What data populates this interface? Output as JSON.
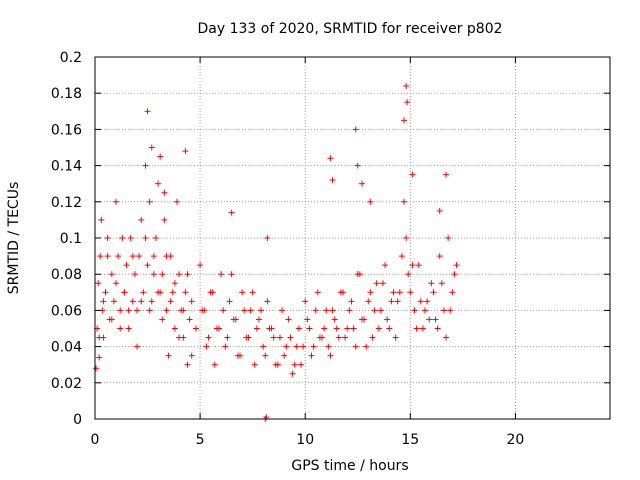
{
  "chart_data": {
    "type": "scatter",
    "title": "Day 133 of 2020, SRMTID for receiver p802",
    "xlabel": "GPS time / hours",
    "ylabel": "SRMTID / TECUs",
    "xlim": [
      0,
      24.5
    ],
    "ylim": [
      0,
      0.2
    ],
    "x_ticks": [
      0,
      5,
      10,
      15,
      20
    ],
    "x_tick_labels": [
      "0",
      "5",
      "10",
      "15",
      "20"
    ],
    "y_ticks": [
      0,
      0.02,
      0.04,
      0.06,
      0.08,
      0.1,
      0.12,
      0.14,
      0.16,
      0.18,
      0.2
    ],
    "y_tick_labels": [
      "0",
      "0.02",
      "0.04",
      "0.06",
      "0.08",
      "0.1",
      "0.12",
      "0.14",
      "0.16",
      "0.18",
      "0.2"
    ],
    "grid": true,
    "marker": "+",
    "color": "#ff0000",
    "series": [
      {
        "name": "SRMTID",
        "x": [
          0.05,
          0.1,
          0.15,
          0.2,
          0.25,
          0.3,
          0.35,
          0.4,
          0.5,
          0.6,
          0.7,
          0.8,
          0.9,
          1.0,
          1.1,
          1.2,
          1.3,
          1.4,
          1.5,
          1.6,
          1.7,
          1.8,
          1.9,
          2.0,
          2.1,
          2.2,
          2.3,
          2.4,
          2.5,
          2.6,
          2.7,
          2.8,
          2.9,
          3.0,
          3.1,
          3.2,
          3.3,
          3.4,
          3.5,
          3.6,
          3.7,
          3.8,
          3.9,
          4.0,
          4.1,
          4.2,
          4.3,
          4.4,
          4.5,
          4.6,
          4.8,
          5.0,
          5.2,
          5.4,
          5.6,
          5.8,
          6.0,
          6.2,
          6.4,
          6.6,
          6.8,
          7.0,
          7.2,
          7.4,
          7.6,
          7.8,
          8.0,
          8.2,
          8.4,
          8.6,
          8.8,
          9.0,
          9.2,
          9.4,
          9.6,
          9.8,
          10.0,
          10.2,
          10.4,
          10.6,
          10.8,
          11.0,
          11.2,
          11.4,
          11.6,
          11.8,
          12.0,
          12.2,
          12.4,
          12.6,
          12.8,
          13.0,
          13.2,
          13.4,
          13.6,
          13.8,
          14.0,
          14.2,
          14.4,
          14.6,
          14.7,
          14.8,
          14.9,
          15.0,
          15.2,
          15.4,
          15.6,
          15.8,
          16.0,
          16.2,
          16.4,
          16.6,
          16.8,
          17.0,
          17.2,
          0.2,
          0.4,
          0.6,
          0.8,
          1.0,
          1.2,
          1.4,
          1.6,
          1.8,
          2.0,
          2.2,
          2.4,
          2.6,
          2.8,
          3.0,
          3.2,
          3.4,
          3.6,
          3.8,
          4.0,
          4.2,
          4.4,
          4.6,
          5.1,
          5.3,
          5.5,
          5.7,
          5.9,
          6.1,
          6.3,
          6.5,
          6.7,
          6.9,
          7.1,
          7.3,
          7.5,
          7.7,
          7.9,
          8.1,
          8.3,
          8.5,
          8.7,
          8.9,
          9.1,
          9.3,
          9.5,
          9.7,
          9.9,
          10.1,
          10.3,
          10.5,
          10.7,
          10.9,
          11.1,
          11.3,
          11.5,
          11.7,
          11.9,
          12.1,
          12.3,
          12.5,
          12.7,
          12.9,
          13.1,
          13.3,
          13.5,
          13.7,
          13.9,
          14.1,
          14.3,
          14.5,
          15.1,
          15.3,
          15.5,
          15.7,
          15.9,
          16.1,
          16.3,
          16.5,
          16.7,
          16.9,
          17.1,
          2.5,
          2.7,
          3.1,
          3.3,
          4.3,
          6.5,
          8.2,
          11.2,
          11.3,
          12.4,
          12.5,
          12.7,
          13.1,
          14.7,
          14.8,
          14.85,
          15.1,
          16.4,
          16.7,
          8.1,
          8.15
        ],
        "y": [
          0.028,
          0.05,
          0.075,
          0.034,
          0.09,
          0.11,
          0.06,
          0.045,
          0.07,
          0.1,
          0.055,
          0.08,
          0.065,
          0.12,
          0.09,
          0.06,
          0.1,
          0.07,
          0.085,
          0.05,
          0.1,
          0.065,
          0.08,
          0.06,
          0.09,
          0.11,
          0.07,
          0.14,
          0.085,
          0.12,
          0.065,
          0.09,
          0.1,
          0.13,
          0.07,
          0.08,
          0.11,
          0.06,
          0.035,
          0.09,
          0.07,
          0.05,
          0.12,
          0.08,
          0.06,
          0.045,
          0.07,
          0.03,
          0.055,
          0.065,
          0.05,
          0.085,
          0.06,
          0.045,
          0.07,
          0.05,
          0.08,
          0.04,
          0.065,
          0.055,
          0.035,
          0.07,
          0.045,
          0.06,
          0.03,
          0.055,
          0.04,
          0.065,
          0.05,
          0.03,
          0.045,
          0.035,
          0.055,
          0.025,
          0.04,
          0.03,
          0.065,
          0.05,
          0.04,
          0.07,
          0.045,
          0.06,
          0.035,
          0.055,
          0.045,
          0.07,
          0.05,
          0.065,
          0.04,
          0.08,
          0.055,
          0.065,
          0.045,
          0.075,
          0.06,
          0.085,
          0.05,
          0.07,
          0.065,
          0.09,
          0.12,
          0.1,
          0.08,
          0.07,
          0.06,
          0.085,
          0.05,
          0.065,
          0.075,
          0.055,
          0.09,
          0.06,
          0.1,
          0.07,
          0.085,
          0.045,
          0.065,
          0.09,
          0.055,
          0.075,
          0.05,
          0.07,
          0.06,
          0.09,
          0.04,
          0.065,
          0.1,
          0.06,
          0.08,
          0.07,
          0.055,
          0.09,
          0.065,
          0.075,
          0.045,
          0.06,
          0.08,
          0.035,
          0.06,
          0.04,
          0.07,
          0.03,
          0.05,
          0.06,
          0.045,
          0.08,
          0.055,
          0.035,
          0.06,
          0.045,
          0.07,
          0.05,
          0.06,
          0.035,
          0.05,
          0.045,
          0.03,
          0.06,
          0.04,
          0.045,
          0.03,
          0.05,
          0.04,
          0.055,
          0.035,
          0.06,
          0.045,
          0.05,
          0.04,
          0.06,
          0.05,
          0.07,
          0.045,
          0.06,
          0.05,
          0.08,
          0.055,
          0.04,
          0.07,
          0.06,
          0.05,
          0.075,
          0.055,
          0.065,
          0.045,
          0.07,
          0.085,
          0.05,
          0.065,
          0.06,
          0.055,
          0.07,
          0.05,
          0.075,
          0.045,
          0.06,
          0.08,
          0.17,
          0.15,
          0.145,
          0.125,
          0.148,
          0.114,
          0.1,
          0.144,
          0.132,
          0.16,
          0.14,
          0.13,
          0.12,
          0.165,
          0.184,
          0.175,
          0.135,
          0.115,
          0.135,
          0.0,
          0.001
        ]
      }
    ]
  }
}
